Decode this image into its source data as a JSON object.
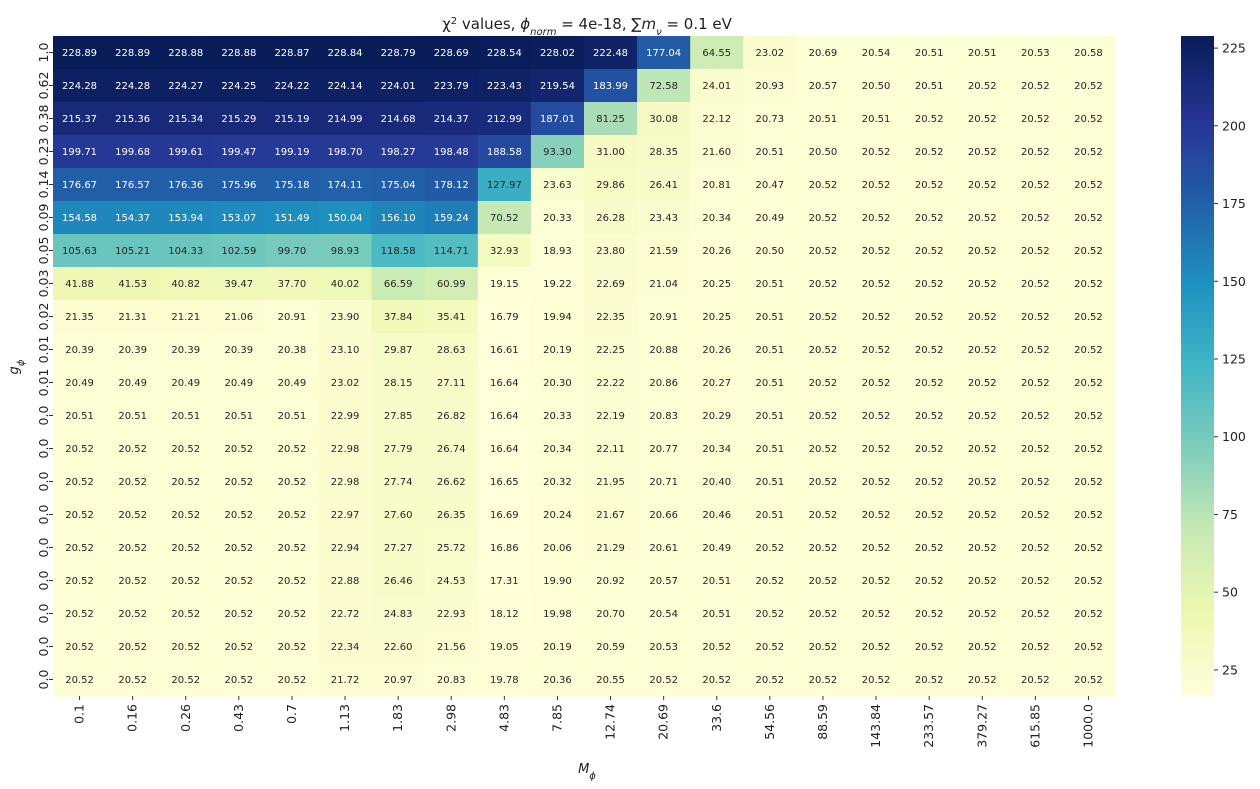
{
  "chart_data": {
    "type": "heatmap",
    "title": "χ² values, ϕ_norm = 4e-18, ∑m_ν = 0.1 eV",
    "xlabel": "M_ϕ",
    "ylabel": "g_ϕ",
    "x_ticks": [
      "0.1",
      "0.16",
      "0.26",
      "0.43",
      "0.7",
      "1.13",
      "1.83",
      "2.98",
      "4.83",
      "7.85",
      "12.74",
      "20.69",
      "33.6",
      "54.56",
      "88.59",
      "143.84",
      "233.57",
      "379.27",
      "615.85",
      "1000.0"
    ],
    "y_ticks": [
      "1.0",
      "0.62",
      "0.38",
      "0.23",
      "0.14",
      "0.09",
      "0.05",
      "0.03",
      "0.02",
      "0.01",
      "0.01",
      "0.0",
      "0.0",
      "0.0",
      "0.0",
      "0.0",
      "0.0",
      "0.0",
      "0.0",
      "0.0"
    ],
    "values": [
      [
        228.89,
        228.89,
        228.88,
        228.88,
        228.87,
        228.84,
        228.79,
        228.69,
        228.54,
        228.02,
        222.48,
        177.04,
        64.55,
        23.02,
        20.69,
        20.54,
        20.51,
        20.51,
        20.53,
        20.58
      ],
      [
        224.28,
        224.28,
        224.27,
        224.25,
        224.22,
        224.14,
        224.01,
        223.79,
        223.43,
        219.54,
        183.99,
        72.58,
        24.01,
        20.93,
        20.57,
        20.5,
        20.51,
        20.52,
        20.52,
        20.52
      ],
      [
        215.37,
        215.36,
        215.34,
        215.29,
        215.19,
        214.99,
        214.68,
        214.37,
        212.99,
        187.01,
        81.25,
        30.08,
        22.12,
        20.73,
        20.51,
        20.51,
        20.52,
        20.52,
        20.52,
        20.52
      ],
      [
        199.71,
        199.68,
        199.61,
        199.47,
        199.19,
        198.7,
        198.27,
        198.48,
        188.58,
        93.3,
        31.0,
        28.35,
        21.6,
        20.51,
        20.5,
        20.52,
        20.52,
        20.52,
        20.52,
        20.52
      ],
      [
        176.67,
        176.57,
        176.36,
        175.96,
        175.18,
        174.11,
        175.04,
        178.12,
        127.97,
        23.63,
        29.86,
        26.41,
        20.81,
        20.47,
        20.52,
        20.52,
        20.52,
        20.52,
        20.52,
        20.52
      ],
      [
        154.58,
        154.37,
        153.94,
        153.07,
        151.49,
        150.04,
        156.1,
        159.24,
        70.52,
        20.33,
        26.28,
        23.43,
        20.34,
        20.49,
        20.52,
        20.52,
        20.52,
        20.52,
        20.52,
        20.52
      ],
      [
        105.63,
        105.21,
        104.33,
        102.59,
        99.7,
        98.93,
        118.58,
        114.71,
        32.93,
        18.93,
        23.8,
        21.59,
        20.26,
        20.5,
        20.52,
        20.52,
        20.52,
        20.52,
        20.52,
        20.52
      ],
      [
        41.88,
        41.53,
        40.82,
        39.47,
        37.7,
        40.02,
        66.59,
        60.99,
        19.15,
        19.22,
        22.69,
        21.04,
        20.25,
        20.51,
        20.52,
        20.52,
        20.52,
        20.52,
        20.52,
        20.52
      ],
      [
        21.35,
        21.31,
        21.21,
        21.06,
        20.91,
        23.9,
        37.84,
        35.41,
        16.79,
        19.94,
        22.35,
        20.91,
        20.25,
        20.51,
        20.52,
        20.52,
        20.52,
        20.52,
        20.52,
        20.52
      ],
      [
        20.39,
        20.39,
        20.39,
        20.39,
        20.38,
        23.1,
        29.87,
        28.63,
        16.61,
        20.19,
        22.25,
        20.88,
        20.26,
        20.51,
        20.52,
        20.52,
        20.52,
        20.52,
        20.52,
        20.52
      ],
      [
        20.49,
        20.49,
        20.49,
        20.49,
        20.49,
        23.02,
        28.15,
        27.11,
        16.64,
        20.3,
        22.22,
        20.86,
        20.27,
        20.51,
        20.52,
        20.52,
        20.52,
        20.52,
        20.52,
        20.52
      ],
      [
        20.51,
        20.51,
        20.51,
        20.51,
        20.51,
        22.99,
        27.85,
        26.82,
        16.64,
        20.33,
        22.19,
        20.83,
        20.29,
        20.51,
        20.52,
        20.52,
        20.52,
        20.52,
        20.52,
        20.52
      ],
      [
        20.52,
        20.52,
        20.52,
        20.52,
        20.52,
        22.98,
        27.79,
        26.74,
        16.64,
        20.34,
        22.11,
        20.77,
        20.34,
        20.51,
        20.52,
        20.52,
        20.52,
        20.52,
        20.52,
        20.52
      ],
      [
        20.52,
        20.52,
        20.52,
        20.52,
        20.52,
        22.98,
        27.74,
        26.62,
        16.65,
        20.32,
        21.95,
        20.71,
        20.4,
        20.51,
        20.52,
        20.52,
        20.52,
        20.52,
        20.52,
        20.52
      ],
      [
        20.52,
        20.52,
        20.52,
        20.52,
        20.52,
        22.97,
        27.6,
        26.35,
        16.69,
        20.24,
        21.67,
        20.66,
        20.46,
        20.51,
        20.52,
        20.52,
        20.52,
        20.52,
        20.52,
        20.52
      ],
      [
        20.52,
        20.52,
        20.52,
        20.52,
        20.52,
        22.94,
        27.27,
        25.72,
        16.86,
        20.06,
        21.29,
        20.61,
        20.49,
        20.52,
        20.52,
        20.52,
        20.52,
        20.52,
        20.52,
        20.52
      ],
      [
        20.52,
        20.52,
        20.52,
        20.52,
        20.52,
        22.88,
        26.46,
        24.53,
        17.31,
        19.9,
        20.92,
        20.57,
        20.51,
        20.52,
        20.52,
        20.52,
        20.52,
        20.52,
        20.52,
        20.52
      ],
      [
        20.52,
        20.52,
        20.52,
        20.52,
        20.52,
        22.72,
        24.83,
        22.93,
        18.12,
        19.98,
        20.7,
        20.54,
        20.51,
        20.52,
        20.52,
        20.52,
        20.52,
        20.52,
        20.52,
        20.52
      ],
      [
        20.52,
        20.52,
        20.52,
        20.52,
        20.52,
        22.34,
        22.6,
        21.56,
        19.05,
        20.19,
        20.59,
        20.53,
        20.52,
        20.52,
        20.52,
        20.52,
        20.52,
        20.52,
        20.52,
        20.52
      ],
      [
        20.52,
        20.52,
        20.52,
        20.52,
        20.52,
        21.72,
        20.97,
        20.83,
        19.78,
        20.36,
        20.55,
        20.52,
        20.52,
        20.52,
        20.52,
        20.52,
        20.52,
        20.52,
        20.52,
        20.52
      ]
    ],
    "colormap": "YlGnBu",
    "colormap_stops": [
      "#ffffd9",
      "#edf8b1",
      "#c7e9b4",
      "#7fcdbb",
      "#41b6c4",
      "#1d91c0",
      "#225ea8",
      "#253494",
      "#081d58"
    ],
    "color_range": [
      16.61,
      228.89
    ],
    "colorbar_ticks": [
      25,
      50,
      75,
      100,
      125,
      150,
      175,
      200,
      225
    ],
    "colorbar_tick_labels": [
      "25",
      "50",
      "75",
      "100",
      "125",
      "150",
      "175",
      "200",
      "225"
    ]
  }
}
